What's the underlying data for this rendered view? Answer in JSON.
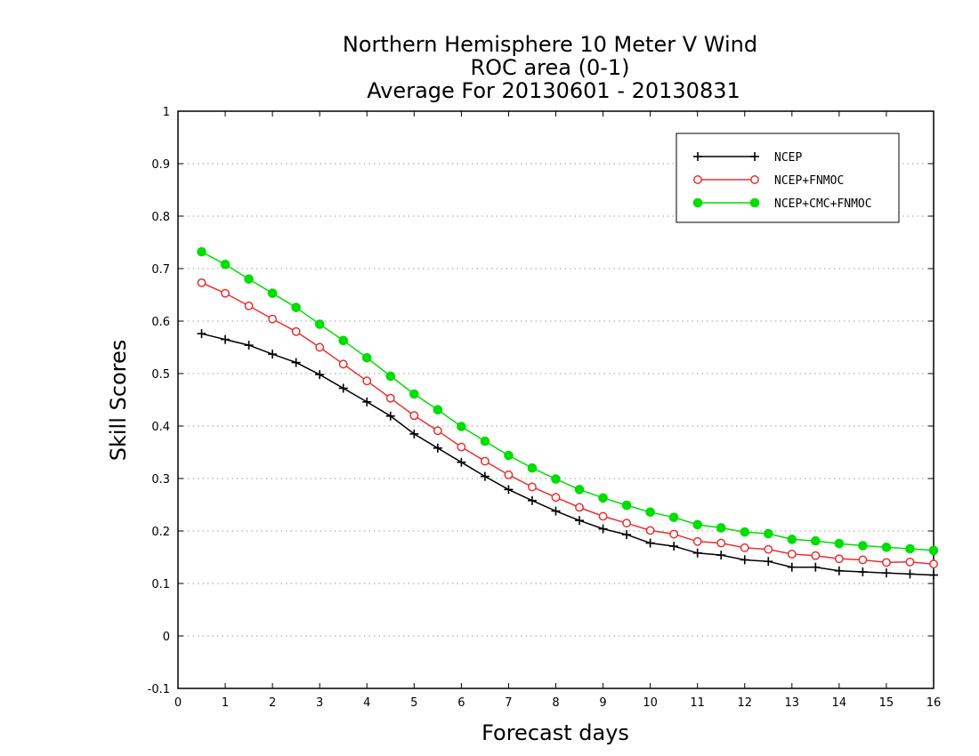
{
  "chart_data": {
    "type": "line",
    "title": [
      "Northern Hemisphere 10 Meter V Wind",
      "ROC area (0-1)",
      "Average For 20130601 - 20130831"
    ],
    "xlabel": "Forecast days",
    "ylabel": "Skill Scores",
    "xlim": [
      0,
      16
    ],
    "ylim": [
      -0.1,
      1
    ],
    "xticks": [
      "0",
      "1",
      "2",
      "3",
      "4",
      "5",
      "6",
      "7",
      "8",
      "9",
      "10",
      "11",
      "12",
      "13",
      "14",
      "15",
      "16"
    ],
    "yticks": [
      "-0.1",
      "0",
      "0.1",
      "0.2",
      "0.3",
      "0.4",
      "0.5",
      "0.6",
      "0.7",
      "0.8",
      "0.9",
      "1"
    ],
    "grid": "horizontal dotted",
    "legend_position": "top-right",
    "x": [
      0.5,
      1,
      1.5,
      2,
      2.5,
      3,
      3.5,
      4,
      4.5,
      5,
      5.5,
      6,
      6.5,
      7,
      7.5,
      8,
      8.5,
      9,
      9.5,
      10,
      10.5,
      11,
      11.5,
      12,
      12.5,
      13,
      13.5,
      14,
      14.5,
      15,
      15.5,
      16
    ],
    "series": [
      {
        "name": "NCEP",
        "color": "#000000",
        "marker": "plus",
        "values": [
          0.576,
          0.565,
          0.554,
          0.537,
          0.521,
          0.498,
          0.472,
          0.446,
          0.419,
          0.385,
          0.358,
          0.331,
          0.304,
          0.279,
          0.258,
          0.238,
          0.22,
          0.204,
          0.193,
          0.177,
          0.171,
          0.158,
          0.154,
          0.145,
          0.142,
          0.131,
          0.131,
          0.124,
          0.122,
          0.12,
          0.118,
          0.116
        ]
      },
      {
        "name": "NCEP+FNMOC",
        "color": "#e83030",
        "marker": "open-circle",
        "values": [
          0.673,
          0.653,
          0.629,
          0.604,
          0.58,
          0.55,
          0.518,
          0.486,
          0.453,
          0.42,
          0.391,
          0.36,
          0.333,
          0.307,
          0.284,
          0.264,
          0.245,
          0.228,
          0.215,
          0.201,
          0.194,
          0.18,
          0.177,
          0.168,
          0.165,
          0.156,
          0.153,
          0.147,
          0.145,
          0.14,
          0.141,
          0.137
        ]
      },
      {
        "name": "NCEP+CMC+FNMOC",
        "color": "#00dd00",
        "marker": "filled-circle",
        "values": [
          0.732,
          0.708,
          0.68,
          0.653,
          0.626,
          0.594,
          0.563,
          0.53,
          0.495,
          0.461,
          0.431,
          0.399,
          0.371,
          0.344,
          0.32,
          0.299,
          0.279,
          0.263,
          0.249,
          0.236,
          0.226,
          0.212,
          0.206,
          0.198,
          0.195,
          0.184,
          0.181,
          0.176,
          0.172,
          0.169,
          0.166,
          0.163
        ]
      }
    ]
  }
}
